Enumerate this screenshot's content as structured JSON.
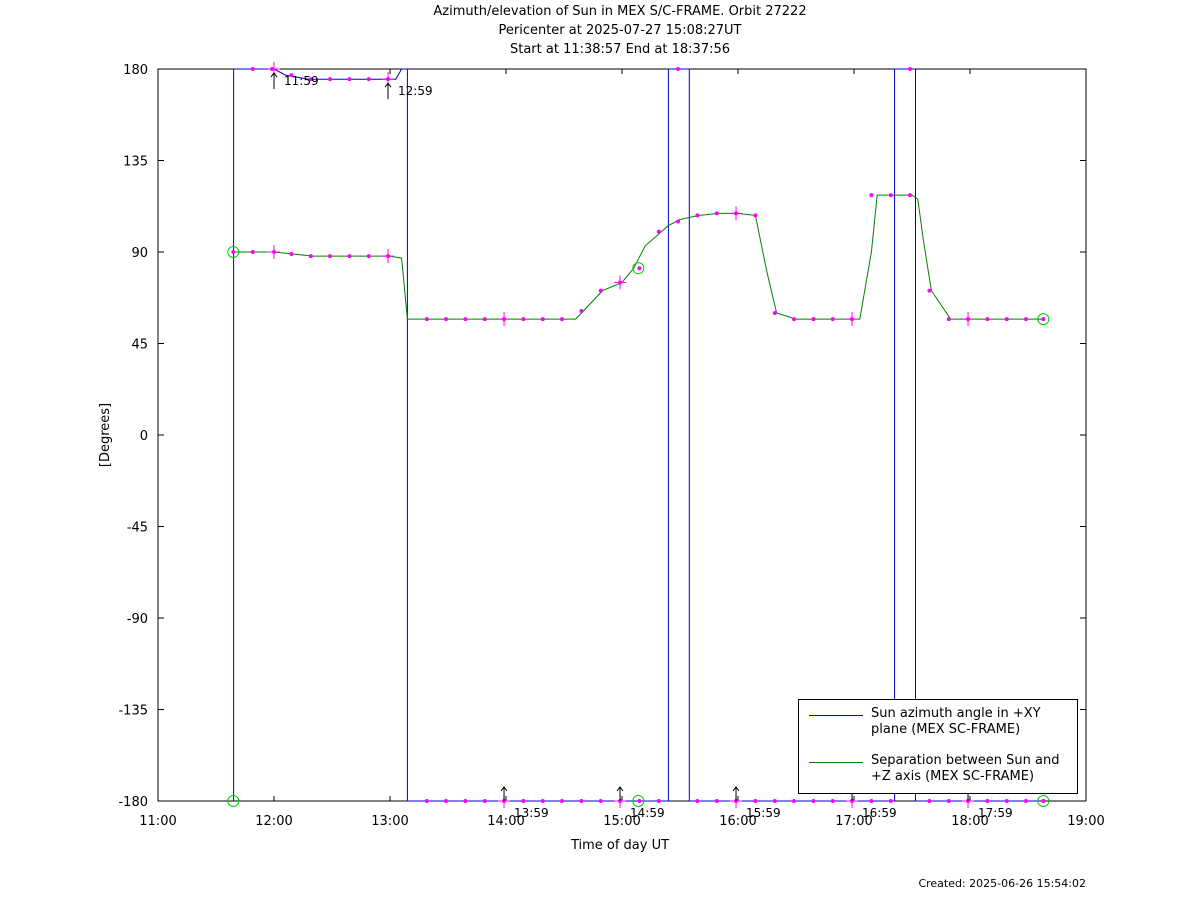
{
  "chart_data": {
    "type": "line",
    "title": [
      "Azimuth/elevation of Sun in MEX S/C-FRAME.  Orbit 27222",
      "Pericenter at 2025-07-27 15:08:27UT",
      "Start at 11:38:57 End at 18:37:56"
    ],
    "xlabel": "Time of day UT",
    "ylabel": "[Degrees]",
    "xlim": [
      11,
      19
    ],
    "ylim": [
      -180,
      180
    ],
    "xticks": [
      11,
      12,
      13,
      14,
      15,
      16,
      17,
      18,
      19
    ],
    "xtick_labels": [
      "11:00",
      "12:00",
      "13:00",
      "14:00",
      "15:00",
      "16:00",
      "17:00",
      "18:00",
      "19:00"
    ],
    "yticks": [
      180,
      135,
      90,
      45,
      0,
      -45,
      -90,
      -135,
      -180
    ],
    "ytick_labels": [
      "180",
      "135",
      "90",
      "45",
      "0",
      "-45",
      "-90",
      "-135",
      "-180"
    ],
    "legend_position": "bottom-right",
    "series": [
      {
        "name": "Sun azimuth angle in +XY\nplane (MEX SC-FRAME)",
        "color": "#0000cc",
        "x": [
          11.649,
          11.652,
          11.652,
          11.833,
          12.0,
          12.1,
          12.3,
          12.5,
          12.7,
          12.9,
          13.05,
          13.1,
          13.15,
          13.15,
          13.5,
          14.0,
          14.5,
          15.0,
          15.3,
          15.4,
          15.4,
          15.58,
          15.58,
          16.0,
          16.5,
          17.0,
          17.3,
          17.35,
          17.35,
          17.53,
          17.53,
          18.0,
          18.6
        ],
        "y": [
          -180,
          -180,
          180,
          180,
          180,
          177,
          175,
          175,
          175,
          175,
          175,
          180,
          180,
          -180,
          -180,
          -180,
          -180,
          -180,
          -180,
          -180,
          180,
          180,
          -180,
          -180,
          -180,
          -180,
          -180,
          -180,
          180,
          180,
          -180,
          -180,
          -180
        ]
      },
      {
        "name": "Separation between Sun and\n+Z axis (MEX SC-FRAME)",
        "color": "#008000",
        "x": [
          11.649,
          11.833,
          12.0,
          12.167,
          12.333,
          12.5,
          12.667,
          12.833,
          13.0,
          13.1,
          13.15,
          13.167,
          13.333,
          13.5,
          13.667,
          13.833,
          14.0,
          14.167,
          14.333,
          14.5,
          14.6,
          14.667,
          14.833,
          15.0,
          15.1,
          15.2,
          15.3,
          15.4,
          15.5,
          15.667,
          15.833,
          16.0,
          16.15,
          16.25,
          16.333,
          16.5,
          16.667,
          16.833,
          17.0,
          17.05,
          17.15,
          17.2,
          17.333,
          17.5,
          17.55,
          17.6,
          17.667,
          17.833,
          18.0,
          18.167,
          18.333,
          18.5,
          18.632
        ],
        "y": [
          90,
          90,
          90,
          89,
          88,
          88,
          88,
          88,
          88,
          87,
          57,
          57,
          57,
          57,
          57,
          57,
          57,
          57,
          57,
          57,
          57,
          61,
          71,
          75,
          82,
          93,
          98,
          103,
          106,
          108,
          109,
          109,
          108,
          80,
          60,
          57,
          57,
          57,
          57,
          57,
          90,
          118,
          118,
          118,
          116,
          95,
          71,
          57,
          57,
          57,
          57,
          57,
          57
        ]
      }
    ],
    "marker_series": {
      "name": "hourly/10-min markers",
      "color": "#ff00ff",
      "points": [
        [
          11.649,
          90
        ],
        [
          11.817,
          90
        ],
        [
          12.0,
          90
        ],
        [
          12.15,
          89
        ],
        [
          12.317,
          88
        ],
        [
          12.483,
          88
        ],
        [
          12.65,
          88
        ],
        [
          12.817,
          88
        ],
        [
          12.983,
          88
        ],
        [
          13.317,
          57
        ],
        [
          13.483,
          57
        ],
        [
          13.65,
          57
        ],
        [
          13.817,
          57
        ],
        [
          13.983,
          57
        ],
        [
          14.15,
          57
        ],
        [
          14.317,
          57
        ],
        [
          14.483,
          57
        ],
        [
          14.65,
          61
        ],
        [
          14.817,
          71
        ],
        [
          14.983,
          75
        ],
        [
          15.15,
          82
        ],
        [
          15.317,
          100
        ],
        [
          15.483,
          105
        ],
        [
          15.65,
          108
        ],
        [
          15.817,
          109
        ],
        [
          15.983,
          109
        ],
        [
          16.15,
          108
        ],
        [
          16.317,
          60
        ],
        [
          16.483,
          57
        ],
        [
          16.65,
          57
        ],
        [
          16.817,
          57
        ],
        [
          16.983,
          57
        ],
        [
          17.15,
          118
        ],
        [
          17.317,
          118
        ],
        [
          17.483,
          118
        ],
        [
          17.65,
          71
        ],
        [
          17.817,
          57
        ],
        [
          17.983,
          57
        ],
        [
          18.15,
          57
        ],
        [
          18.317,
          57
        ],
        [
          18.483,
          57
        ],
        [
          18.632,
          57
        ],
        [
          11.817,
          180
        ],
        [
          11.983,
          180
        ],
        [
          12.15,
          177
        ],
        [
          12.317,
          175
        ],
        [
          12.483,
          175
        ],
        [
          12.65,
          175
        ],
        [
          12.817,
          175
        ],
        [
          12.983,
          175
        ],
        [
          13.317,
          -180
        ],
        [
          13.483,
          -180
        ],
        [
          13.65,
          -180
        ],
        [
          13.817,
          -180
        ],
        [
          13.983,
          -180
        ],
        [
          14.15,
          -180
        ],
        [
          14.317,
          -180
        ],
        [
          14.483,
          -180
        ],
        [
          14.65,
          -180
        ],
        [
          14.817,
          -180
        ],
        [
          14.983,
          -180
        ],
        [
          15.15,
          -180
        ],
        [
          15.317,
          -180
        ],
        [
          15.483,
          180
        ],
        [
          15.65,
          -180
        ],
        [
          15.817,
          -180
        ],
        [
          15.983,
          -180
        ],
        [
          16.15,
          -180
        ],
        [
          16.317,
          -180
        ],
        [
          16.483,
          -180
        ],
        [
          16.65,
          -180
        ],
        [
          16.817,
          -180
        ],
        [
          16.983,
          -180
        ],
        [
          17.15,
          -180
        ],
        [
          17.317,
          -180
        ],
        [
          17.483,
          180
        ],
        [
          17.65,
          -180
        ],
        [
          17.817,
          -180
        ],
        [
          17.983,
          -180
        ],
        [
          18.15,
          -180
        ],
        [
          18.317,
          -180
        ],
        [
          18.483,
          -180
        ],
        [
          18.632,
          -180
        ]
      ]
    },
    "circle_markers": [
      [
        11.649,
        90
      ],
      [
        11.649,
        -180
      ],
      [
        15.141,
        82
      ],
      [
        15.141,
        -180
      ],
      [
        18.632,
        57
      ],
      [
        18.632,
        -180
      ]
    ],
    "hour_crosses": [
      [
        12.0,
        90
      ],
      [
        12.0,
        180
      ],
      [
        12.983,
        88
      ],
      [
        12.983,
        175
      ],
      [
        13.983,
        57
      ],
      [
        13.983,
        -180
      ],
      [
        14.983,
        75
      ],
      [
        14.983,
        -180
      ],
      [
        15.983,
        109
      ],
      [
        15.983,
        -180
      ],
      [
        16.983,
        57
      ],
      [
        16.983,
        -180
      ],
      [
        17.983,
        57
      ],
      [
        17.983,
        -180
      ]
    ],
    "time_annotations": [
      {
        "label": "11:59",
        "x": 12.0,
        "y": 180,
        "near": "top"
      },
      {
        "label": "12:59",
        "x": 12.983,
        "y": 175,
        "near": "top"
      },
      {
        "label": "13:59",
        "x": 13.983,
        "y": -180,
        "near": "bottom"
      },
      {
        "label": "14:59",
        "x": 14.983,
        "y": -180,
        "near": "bottom"
      },
      {
        "label": "15:59",
        "x": 15.983,
        "y": -180,
        "near": "bottom"
      },
      {
        "label": "16:59",
        "x": 16.983,
        "y": -180,
        "near": "bottom"
      },
      {
        "label": "17:59",
        "x": 17.983,
        "y": -180,
        "near": "bottom"
      }
    ]
  },
  "footer": {
    "created": "Created: 2025-06-26 15:54:02"
  }
}
